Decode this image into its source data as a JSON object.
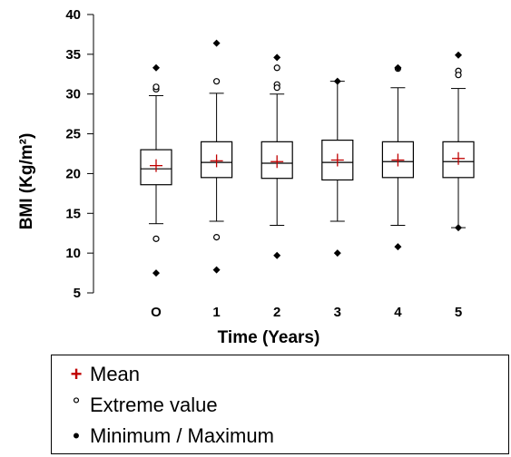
{
  "chart_data": {
    "type": "boxplot",
    "ylabel": "BMI (Kg/m²)",
    "xlabel": "Time (Years)",
    "ylim": [
      5,
      40
    ],
    "yticks": [
      5,
      10,
      15,
      20,
      25,
      30,
      35,
      40
    ],
    "categories": [
      "O",
      "1",
      "2",
      "3",
      "4",
      "5"
    ],
    "boxes": [
      {
        "category": "O",
        "min": 13.7,
        "q1": 18.6,
        "median": 20.6,
        "q3": 23.0,
        "max": 29.8,
        "mean": 21.0,
        "extremes": [
          30.6,
          30.9,
          11.8
        ],
        "minmax_points": [
          33.3,
          7.5
        ]
      },
      {
        "category": "1",
        "min": 14.0,
        "q1": 19.5,
        "median": 21.4,
        "q3": 24.0,
        "max": 30.1,
        "mean": 21.6,
        "extremes": [
          31.6,
          12.0
        ],
        "minmax_points": [
          36.4,
          7.9
        ]
      },
      {
        "category": "2",
        "min": 13.5,
        "q1": 19.4,
        "median": 21.3,
        "q3": 24.0,
        "max": 30.0,
        "mean": 21.5,
        "extremes": [
          33.3,
          31.2,
          30.8
        ],
        "minmax_points": [
          34.6,
          9.7
        ]
      },
      {
        "category": "3",
        "min": 14.0,
        "q1": 19.2,
        "median": 21.4,
        "q3": 24.2,
        "max": 31.6,
        "mean": 21.7,
        "extremes": [],
        "minmax_points": [
          31.6,
          10.0
        ]
      },
      {
        "category": "4",
        "min": 13.5,
        "q1": 19.5,
        "median": 21.5,
        "q3": 24.0,
        "max": 30.8,
        "mean": 21.7,
        "extremes": [
          33.2
        ],
        "minmax_points": [
          33.3,
          10.8
        ]
      },
      {
        "category": "5",
        "min": 13.2,
        "q1": 19.5,
        "median": 21.5,
        "q3": 24.0,
        "max": 30.7,
        "mean": 21.9,
        "extremes": [
          32.9,
          32.4
        ],
        "minmax_points": [
          34.9,
          13.2
        ]
      }
    ],
    "colors": {
      "mean": "#c00000",
      "box": "#000000"
    }
  },
  "legend": {
    "mean_symbol": "+",
    "mean_label": "Mean",
    "extreme_symbol": "°",
    "extreme_label": "Extreme value",
    "minmax_symbol": "•",
    "minmax_label": "Minimum / Maximum"
  }
}
